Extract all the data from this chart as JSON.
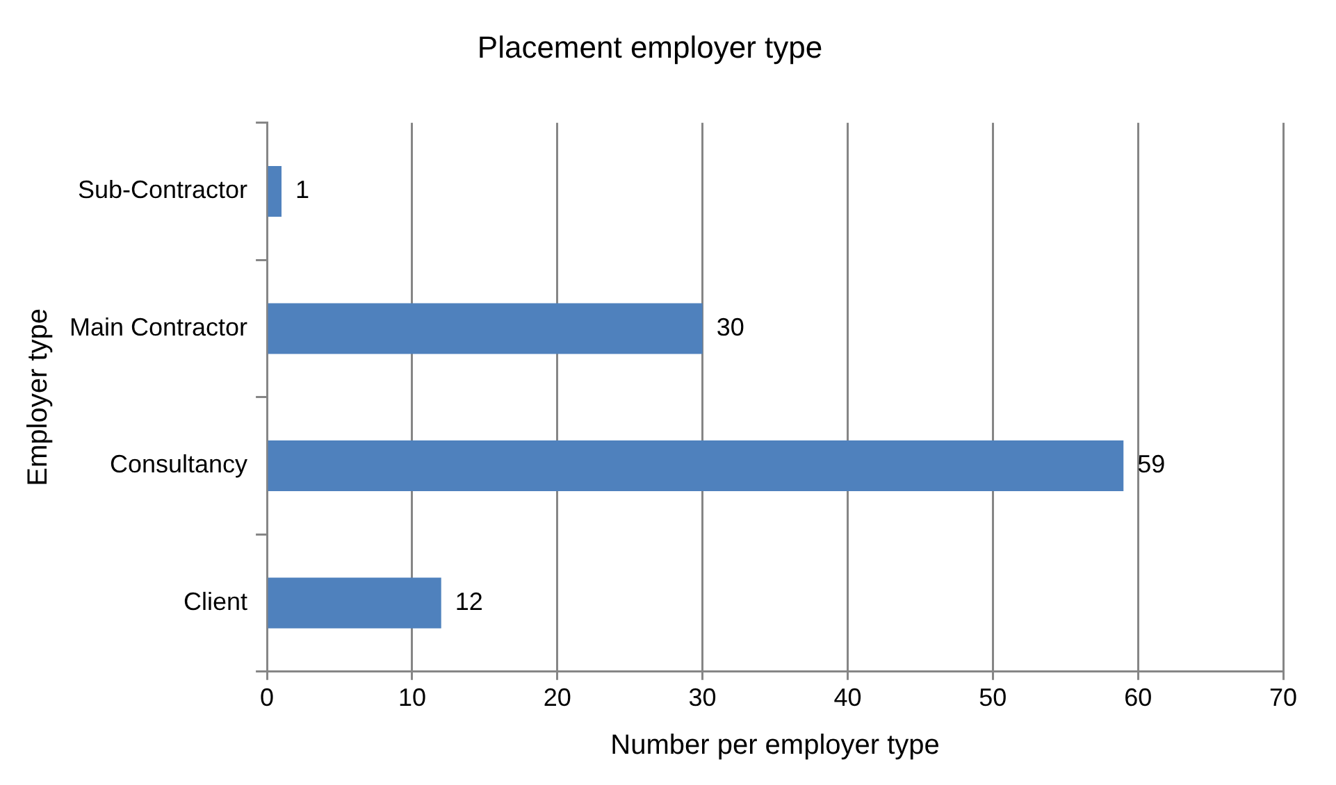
{
  "chart_data": {
    "type": "bar",
    "orientation": "horizontal",
    "title": "Placement employer type",
    "xlabel": "Number per employer type",
    "ylabel": "Employer type",
    "categories": [
      "Sub-Contractor",
      "Main Contractor",
      "Consultancy",
      "Client"
    ],
    "values": [
      1,
      30,
      59,
      12
    ],
    "color": "#4f81bd",
    "xlim": [
      0,
      70
    ],
    "xticks": [
      0,
      10,
      20,
      30,
      40,
      50,
      60,
      70
    ],
    "grid": "x",
    "legend": false,
    "data_labels": true
  }
}
